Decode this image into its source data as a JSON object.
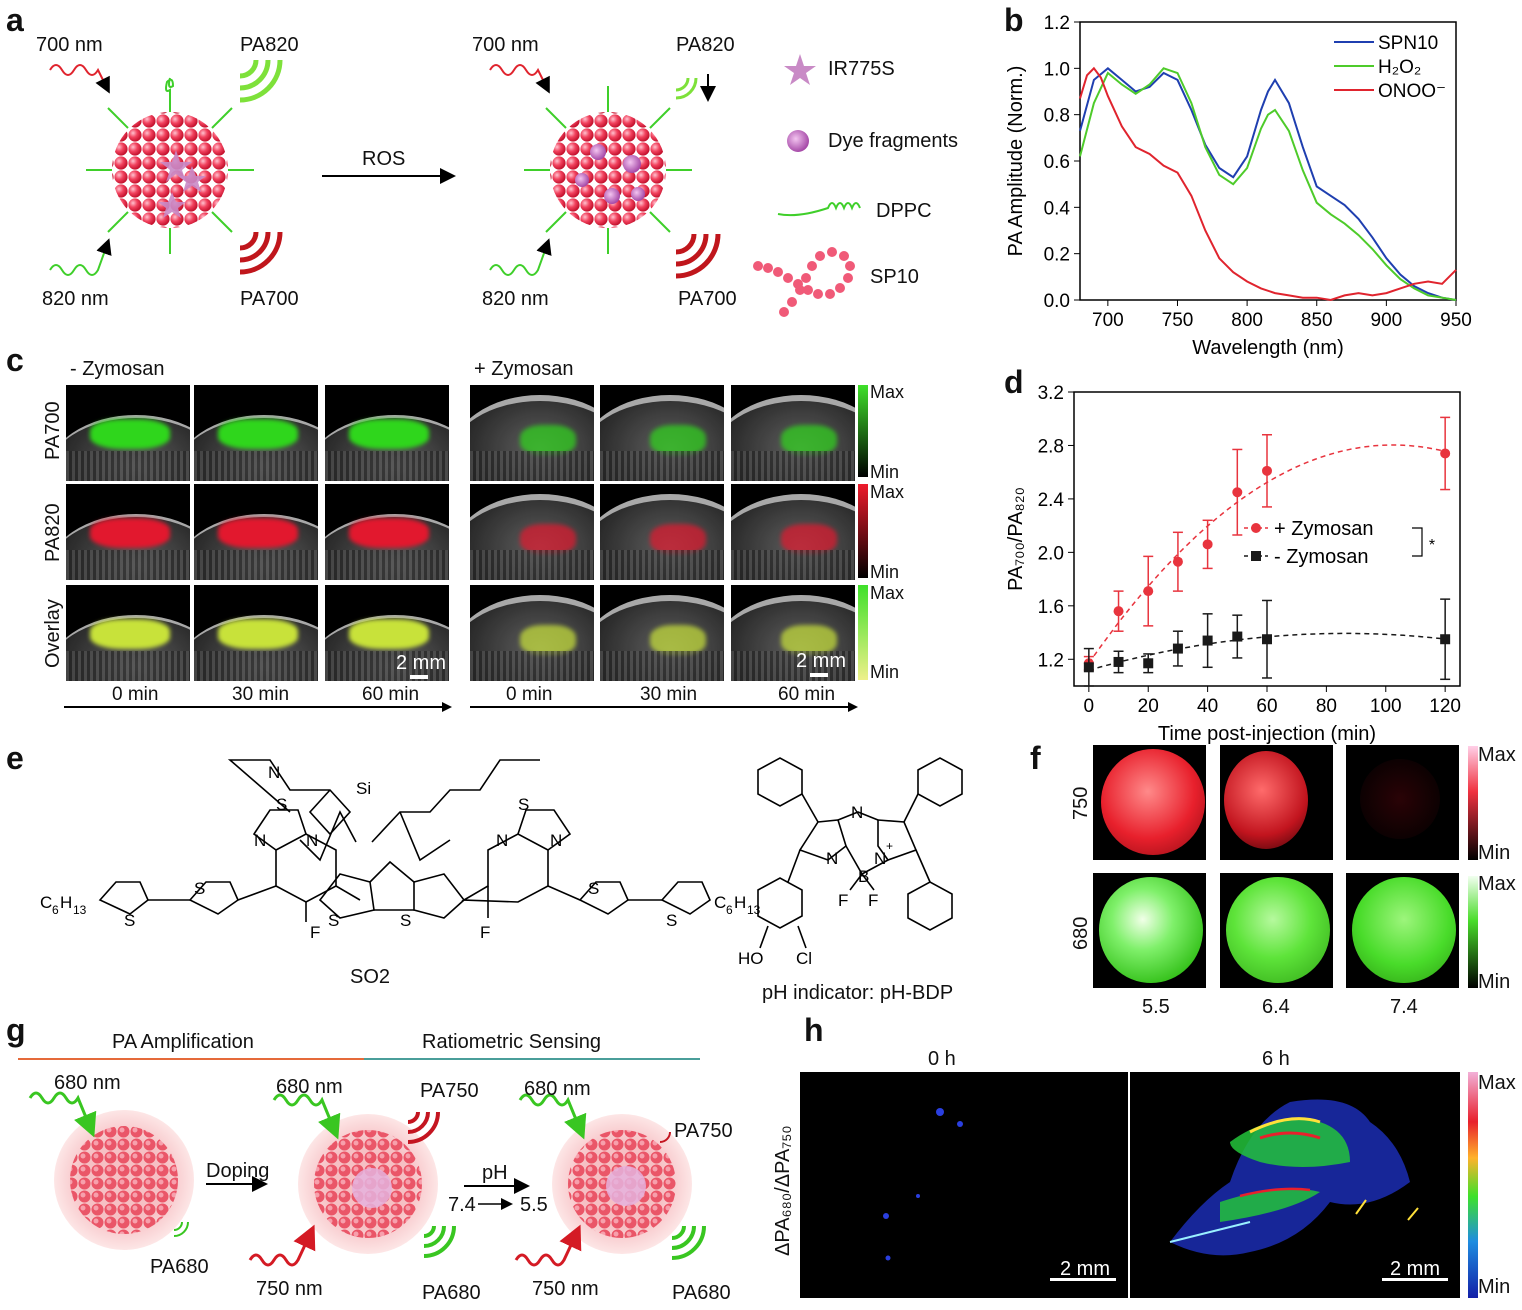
{
  "panels": {
    "a": "a",
    "b": "b",
    "c": "c",
    "d": "d",
    "e": "e",
    "f": "f",
    "g": "g",
    "h": "h"
  },
  "panel_a": {
    "l700": "700 nm",
    "lpa820": "PA820",
    "l820": "820 nm",
    "lpa700": "PA700",
    "arrow": "ROS",
    "r700": "700 nm",
    "rpa820": "PA820",
    "r820": "820 nm",
    "rpa700": "PA700",
    "legend": [
      "IR775S",
      "Dye fragments",
      "DPPC",
      "SP10"
    ]
  },
  "panel_c": {
    "left_title": "- Zymosan",
    "right_title": "+ Zymosan",
    "rows": [
      "PA700",
      "PA820",
      "Overlay"
    ],
    "times": [
      "0 min",
      "30 min",
      "60 min"
    ],
    "scale": "2 mm",
    "max": "Max",
    "min": "Min",
    "colors": {
      "pa700": "#2fd61c",
      "pa820": "#e2182e",
      "overlay": "#c8e23a"
    }
  },
  "panel_e": {
    "c6h13": "C₆H₁₃",
    "so2": "SO2",
    "caption": "pH indicator: pH-BDP",
    "atoms": {
      "S": "S",
      "N": "N",
      "F": "F",
      "Si": "Si",
      "B": "B",
      "Nplus": "N⁺",
      "HO": "HO",
      "Cl": "Cl"
    }
  },
  "panel_f": {
    "rows": [
      "750",
      "680"
    ],
    "cols": [
      "5.5",
      "6.4",
      "7.4"
    ],
    "max": "Max",
    "min": "Min"
  },
  "panel_g": {
    "phase1": "PA Amplification",
    "phase2": "Ratiometric Sensing",
    "nm680": "680 nm",
    "nm750": "750 nm",
    "pa750": "PA750",
    "pa680": "PA680",
    "doping": "Doping",
    "ph": "pH",
    "ph_from": "7.4",
    "ph_to": "5.5"
  },
  "panel_h": {
    "t0": "0 h",
    "t6": "6 h",
    "ylabel": "ΔPA₆₈₀/ΔPA₇₅₀",
    "scale": "2 mm",
    "max": "Max",
    "min": "Min"
  },
  "chart_data": [
    {
      "panel": "b",
      "type": "line",
      "xlabel": "Wavelength (nm)",
      "ylabel": "PA Amplitude (Norm.)",
      "xlim": [
        680,
        950
      ],
      "ylim": [
        0,
        1.2
      ],
      "xticks": [
        700,
        750,
        800,
        850,
        900,
        950
      ],
      "yticks": [
        0.0,
        0.2,
        0.4,
        0.6,
        0.8,
        1.0,
        1.2
      ],
      "legend_position": "top-right",
      "series": [
        {
          "name": "SPN10",
          "color": "#1f3fb0",
          "x": [
            680,
            690,
            700,
            710,
            720,
            730,
            740,
            750,
            760,
            770,
            780,
            790,
            800,
            810,
            815,
            820,
            830,
            840,
            850,
            860,
            870,
            880,
            890,
            900,
            910,
            920,
            930,
            940,
            950
          ],
          "y": [
            0.73,
            0.95,
            1.0,
            0.95,
            0.9,
            0.92,
            0.98,
            0.95,
            0.82,
            0.67,
            0.57,
            0.53,
            0.62,
            0.82,
            0.9,
            0.95,
            0.85,
            0.66,
            0.49,
            0.45,
            0.41,
            0.35,
            0.27,
            0.18,
            0.11,
            0.06,
            0.03,
            0.01,
            0.0
          ]
        },
        {
          "name": "H₂O₂",
          "color": "#4ecb2a",
          "x": [
            680,
            690,
            700,
            710,
            720,
            730,
            740,
            750,
            760,
            770,
            780,
            790,
            800,
            810,
            815,
            820,
            830,
            840,
            850,
            860,
            870,
            880,
            890,
            900,
            910,
            920,
            930,
            940,
            950
          ],
          "y": [
            0.62,
            0.85,
            0.98,
            0.93,
            0.89,
            0.93,
            1.0,
            0.98,
            0.85,
            0.66,
            0.54,
            0.5,
            0.57,
            0.74,
            0.8,
            0.82,
            0.73,
            0.56,
            0.42,
            0.37,
            0.33,
            0.28,
            0.22,
            0.15,
            0.09,
            0.05,
            0.02,
            0.01,
            0.0
          ]
        },
        {
          "name": "ONOO⁻",
          "color": "#e0242e",
          "x": [
            680,
            685,
            690,
            695,
            700,
            710,
            720,
            730,
            740,
            750,
            760,
            770,
            780,
            790,
            800,
            810,
            820,
            830,
            840,
            850,
            860,
            870,
            880,
            890,
            900,
            910,
            920,
            930,
            940,
            950
          ],
          "y": [
            0.87,
            0.97,
            1.0,
            0.96,
            0.88,
            0.75,
            0.66,
            0.63,
            0.58,
            0.55,
            0.45,
            0.3,
            0.18,
            0.12,
            0.08,
            0.05,
            0.03,
            0.02,
            0.01,
            0.01,
            0.0,
            0.02,
            0.03,
            0.02,
            0.03,
            0.05,
            0.07,
            0.08,
            0.07,
            0.13
          ]
        }
      ]
    },
    {
      "panel": "d",
      "type": "scatter",
      "xlabel": "Time post-injection (min)",
      "ylabel": "PA₇₀₀/PA₈₂₀",
      "xlim": [
        -5,
        125
      ],
      "ylim": [
        1.0,
        3.2
      ],
      "xticks": [
        0,
        20,
        40,
        60,
        80,
        100,
        120
      ],
      "yticks": [
        1.2,
        1.6,
        2.0,
        2.4,
        2.8,
        3.2
      ],
      "legend_position": "center-right",
      "significance": "*",
      "series": [
        {
          "name": "+ Zymosan",
          "color": "#e8343e",
          "marker": "circle",
          "x": [
            0,
            10,
            20,
            30,
            40,
            50,
            60,
            120
          ],
          "y": [
            1.17,
            1.56,
            1.71,
            1.93,
            2.06,
            2.45,
            2.61,
            2.74
          ],
          "err": [
            0.05,
            0.15,
            0.26,
            0.22,
            0.18,
            0.32,
            0.27,
            0.27
          ]
        },
        {
          "name": "- Zymosan",
          "color": "#1a1a1a",
          "marker": "square",
          "x": [
            0,
            10,
            20,
            30,
            40,
            50,
            60,
            120
          ],
          "y": [
            1.14,
            1.18,
            1.17,
            1.28,
            1.34,
            1.37,
            1.35,
            1.35
          ],
          "err": [
            0.14,
            0.08,
            0.07,
            0.13,
            0.2,
            0.16,
            0.29,
            0.3
          ]
        }
      ]
    }
  ]
}
